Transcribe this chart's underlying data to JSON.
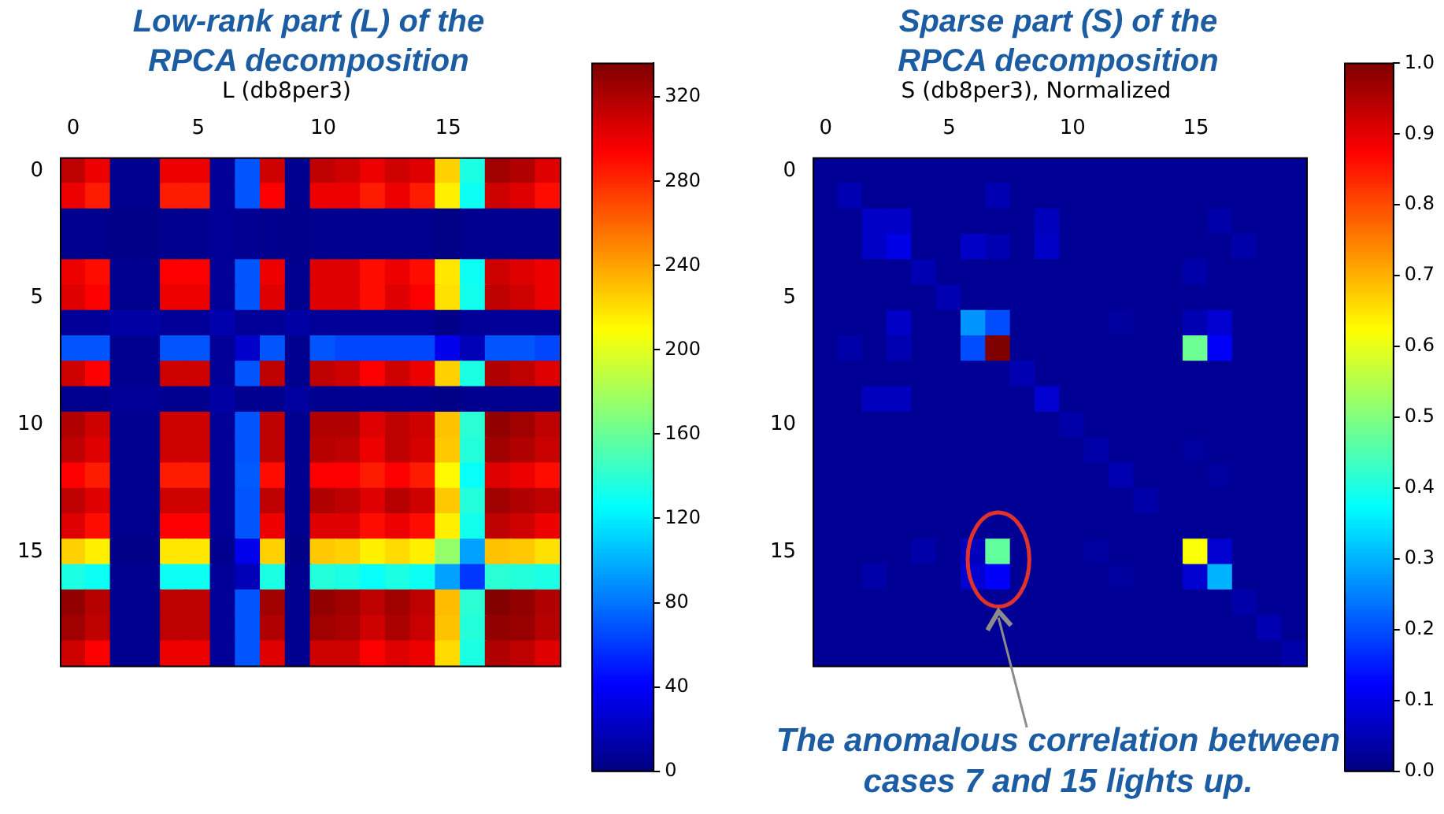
{
  "chart_data": [
    {
      "type": "heatmap",
      "title": "Low-rank part (L) of the RPCA decomposition",
      "subtitle": "L (db8per3)",
      "categories": [
        "0",
        null,
        null,
        null,
        null,
        "5",
        null,
        null,
        null,
        null,
        "10",
        null,
        null,
        null,
        null,
        "15",
        null,
        null,
        null,
        null
      ],
      "y_categories": [
        "0",
        null,
        null,
        null,
        null,
        "5",
        null,
        null,
        null,
        null,
        "10",
        null,
        null,
        null,
        null,
        "15",
        null,
        null,
        null,
        null
      ],
      "cells": [
        [
          315,
          300,
          5,
          5,
          300,
          300,
          8,
          70,
          310,
          5,
          315,
          310,
          300,
          310,
          305,
          225,
          135,
          325,
          320,
          305
        ],
        [
          300,
          285,
          5,
          5,
          285,
          285,
          8,
          70,
          295,
          5,
          300,
          300,
          285,
          300,
          285,
          215,
          130,
          310,
          305,
          290
        ],
        [
          5,
          5,
          3,
          3,
          5,
          5,
          8,
          6,
          5,
          4,
          5,
          5,
          5,
          5,
          5,
          2,
          5,
          5,
          5,
          5
        ],
        [
          5,
          5,
          3,
          3,
          5,
          5,
          8,
          6,
          5,
          4,
          5,
          5,
          5,
          5,
          5,
          2,
          5,
          5,
          5,
          5
        ],
        [
          300,
          290,
          5,
          5,
          295,
          295,
          8,
          70,
          300,
          5,
          305,
          305,
          290,
          300,
          290,
          218,
          130,
          310,
          305,
          300
        ],
        [
          305,
          295,
          5,
          5,
          300,
          300,
          8,
          70,
          305,
          5,
          305,
          305,
          290,
          305,
          295,
          220,
          132,
          315,
          310,
          300
        ],
        [
          8,
          8,
          12,
          12,
          8,
          8,
          15,
          8,
          8,
          12,
          8,
          8,
          8,
          8,
          8,
          3,
          8,
          8,
          8,
          8
        ],
        [
          70,
          70,
          5,
          5,
          70,
          70,
          8,
          25,
          70,
          5,
          70,
          65,
          65,
          65,
          65,
          35,
          18,
          70,
          70,
          65
        ],
        [
          310,
          295,
          5,
          5,
          310,
          310,
          8,
          70,
          315,
          5,
          315,
          310,
          295,
          310,
          300,
          225,
          135,
          320,
          315,
          305
        ],
        [
          5,
          5,
          8,
          8,
          5,
          5,
          12,
          5,
          5,
          10,
          5,
          5,
          5,
          5,
          5,
          2,
          5,
          5,
          5,
          5
        ],
        [
          320,
          310,
          5,
          5,
          310,
          310,
          8,
          70,
          315,
          5,
          320,
          320,
          305,
          315,
          310,
          230,
          140,
          330,
          325,
          315
        ],
        [
          315,
          305,
          5,
          5,
          310,
          310,
          8,
          70,
          315,
          5,
          318,
          315,
          300,
          315,
          308,
          228,
          138,
          325,
          320,
          312
        ],
        [
          295,
          285,
          5,
          5,
          285,
          285,
          8,
          72,
          290,
          5,
          295,
          295,
          285,
          295,
          285,
          212,
          128,
          305,
          300,
          290
        ],
        [
          315,
          305,
          5,
          5,
          310,
          310,
          8,
          70,
          315,
          5,
          320,
          315,
          305,
          318,
          310,
          228,
          138,
          325,
          320,
          315
        ],
        [
          305,
          290,
          5,
          5,
          295,
          295,
          8,
          70,
          300,
          5,
          305,
          305,
          290,
          300,
          290,
          215,
          132,
          315,
          310,
          300
        ],
        [
          225,
          215,
          3,
          3,
          218,
          218,
          5,
          35,
          225,
          3,
          228,
          225,
          215,
          222,
          215,
          175,
          95,
          230,
          228,
          220
        ],
        [
          135,
          130,
          5,
          5,
          130,
          130,
          8,
          18,
          135,
          5,
          138,
          135,
          128,
          135,
          130,
          95,
          60,
          140,
          138,
          135
        ],
        [
          330,
          318,
          5,
          5,
          315,
          315,
          8,
          70,
          325,
          5,
          330,
          325,
          315,
          325,
          315,
          232,
          140,
          335,
          330,
          320
        ],
        [
          325,
          315,
          5,
          5,
          315,
          315,
          8,
          70,
          320,
          5,
          325,
          322,
          310,
          322,
          312,
          230,
          138,
          330,
          328,
          318
        ],
        [
          310,
          295,
          5,
          5,
          300,
          300,
          8,
          70,
          305,
          5,
          310,
          310,
          295,
          305,
          300,
          222,
          135,
          320,
          315,
          305
        ]
      ],
      "clim": [
        0,
        336
      ],
      "cticks": [
        0,
        40,
        80,
        120,
        160,
        200,
        240,
        280,
        320
      ]
    },
    {
      "type": "heatmap",
      "title": "Sparse part (S) of the RPCA decomposition",
      "subtitle": "S (db8per3), Normalized",
      "categories": [
        "0",
        null,
        null,
        null,
        null,
        "5",
        null,
        null,
        null,
        null,
        "10",
        null,
        null,
        null,
        null,
        "15",
        null,
        null,
        null,
        null
      ],
      "y_categories": [
        "0",
        null,
        null,
        null,
        null,
        "5",
        null,
        null,
        null,
        null,
        "10",
        null,
        null,
        null,
        null,
        "15",
        null,
        null,
        null,
        null
      ],
      "cells": [
        [
          0.02,
          0.02,
          0.02,
          0.02,
          0.02,
          0.02,
          0.02,
          0.02,
          0.02,
          0.02,
          0.02,
          0.02,
          0.02,
          0.02,
          0.02,
          0.02,
          0.02,
          0.02,
          0.02,
          0.02
        ],
        [
          0.02,
          0.05,
          0.02,
          0.02,
          0.02,
          0.02,
          0.02,
          0.05,
          0.02,
          0.02,
          0.02,
          0.02,
          0.02,
          0.02,
          0.02,
          0.02,
          0.02,
          0.02,
          0.02,
          0.02
        ],
        [
          0.02,
          0.02,
          0.07,
          0.07,
          0.02,
          0.02,
          0.02,
          0.02,
          0.02,
          0.06,
          0.02,
          0.02,
          0.02,
          0.02,
          0.02,
          0.02,
          0.04,
          0.02,
          0.02,
          0.02
        ],
        [
          0.02,
          0.02,
          0.07,
          0.1,
          0.02,
          0.02,
          0.07,
          0.05,
          0.02,
          0.07,
          0.02,
          0.02,
          0.02,
          0.02,
          0.02,
          0.02,
          0.02,
          0.04,
          0.02,
          0.02
        ],
        [
          0.02,
          0.02,
          0.02,
          0.02,
          0.05,
          0.02,
          0.02,
          0.02,
          0.02,
          0.02,
          0.02,
          0.02,
          0.02,
          0.02,
          0.02,
          0.04,
          0.02,
          0.02,
          0.02,
          0.02
        ],
        [
          0.02,
          0.02,
          0.02,
          0.02,
          0.02,
          0.05,
          0.02,
          0.02,
          0.02,
          0.02,
          0.02,
          0.02,
          0.02,
          0.02,
          0.02,
          0.02,
          0.02,
          0.02,
          0.02,
          0.02
        ],
        [
          0.02,
          0.02,
          0.02,
          0.07,
          0.02,
          0.02,
          0.27,
          0.2,
          0.02,
          0.02,
          0.02,
          0.02,
          0.03,
          0.02,
          0.02,
          0.05,
          0.08,
          0.02,
          0.02,
          0.02
        ],
        [
          0.02,
          0.04,
          0.02,
          0.05,
          0.02,
          0.02,
          0.2,
          1.0,
          0.02,
          0.02,
          0.02,
          0.02,
          0.02,
          0.02,
          0.02,
          0.48,
          0.12,
          0.02,
          0.02,
          0.02
        ],
        [
          0.02,
          0.02,
          0.02,
          0.02,
          0.02,
          0.02,
          0.02,
          0.02,
          0.05,
          0.02,
          0.02,
          0.02,
          0.02,
          0.02,
          0.02,
          0.02,
          0.02,
          0.02,
          0.02,
          0.02
        ],
        [
          0.02,
          0.02,
          0.06,
          0.06,
          0.02,
          0.02,
          0.02,
          0.02,
          0.02,
          0.08,
          0.02,
          0.02,
          0.02,
          0.02,
          0.02,
          0.02,
          0.02,
          0.02,
          0.02,
          0.02
        ],
        [
          0.02,
          0.02,
          0.02,
          0.02,
          0.02,
          0.02,
          0.02,
          0.02,
          0.02,
          0.02,
          0.04,
          0.02,
          0.02,
          0.02,
          0.02,
          0.02,
          0.02,
          0.02,
          0.02,
          0.02
        ],
        [
          0.02,
          0.02,
          0.02,
          0.02,
          0.02,
          0.02,
          0.02,
          0.02,
          0.02,
          0.02,
          0.02,
          0.04,
          0.02,
          0.02,
          0.02,
          0.03,
          0.02,
          0.02,
          0.02,
          0.02
        ],
        [
          0.02,
          0.02,
          0.02,
          0.02,
          0.02,
          0.02,
          0.02,
          0.02,
          0.02,
          0.02,
          0.02,
          0.02,
          0.05,
          0.02,
          0.02,
          0.02,
          0.03,
          0.02,
          0.02,
          0.02
        ],
        [
          0.02,
          0.02,
          0.02,
          0.02,
          0.02,
          0.02,
          0.02,
          0.02,
          0.02,
          0.02,
          0.02,
          0.02,
          0.02,
          0.04,
          0.02,
          0.02,
          0.02,
          0.02,
          0.02,
          0.02
        ],
        [
          0.02,
          0.02,
          0.02,
          0.02,
          0.02,
          0.02,
          0.02,
          0.02,
          0.02,
          0.02,
          0.02,
          0.02,
          0.02,
          0.02,
          0.02,
          0.02,
          0.02,
          0.02,
          0.02,
          0.02
        ],
        [
          0.02,
          0.02,
          0.02,
          0.02,
          0.04,
          0.02,
          0.06,
          0.47,
          0.02,
          0.02,
          0.02,
          0.03,
          0.02,
          0.02,
          0.02,
          0.62,
          0.08,
          0.02,
          0.02,
          0.02
        ],
        [
          0.02,
          0.02,
          0.04,
          0.02,
          0.02,
          0.02,
          0.08,
          0.12,
          0.02,
          0.02,
          0.02,
          0.02,
          0.03,
          0.02,
          0.02,
          0.08,
          0.3,
          0.02,
          0.02,
          0.02
        ],
        [
          0.02,
          0.02,
          0.02,
          0.02,
          0.02,
          0.02,
          0.02,
          0.02,
          0.02,
          0.02,
          0.02,
          0.02,
          0.02,
          0.02,
          0.02,
          0.02,
          0.02,
          0.04,
          0.02,
          0.02
        ],
        [
          0.02,
          0.02,
          0.02,
          0.02,
          0.02,
          0.02,
          0.02,
          0.02,
          0.02,
          0.02,
          0.02,
          0.02,
          0.02,
          0.02,
          0.02,
          0.02,
          0.02,
          0.02,
          0.05,
          0.02
        ],
        [
          0.02,
          0.02,
          0.02,
          0.02,
          0.02,
          0.02,
          0.02,
          0.02,
          0.02,
          0.02,
          0.02,
          0.02,
          0.02,
          0.02,
          0.02,
          0.02,
          0.02,
          0.02,
          0.02,
          0.04
        ]
      ],
      "clim": [
        0,
        1
      ],
      "cticks": [
        {
          "value": 0,
          "label": "0.0"
        },
        0.1,
        0.2,
        0.3,
        0.4,
        0.5,
        0.6,
        0.7,
        0.8,
        0.9,
        {
          "value": 1,
          "label": "1.0"
        }
      ],
      "annotations": [
        "The anomalous correlation between cases 7 and 15 lights up."
      ]
    }
  ]
}
